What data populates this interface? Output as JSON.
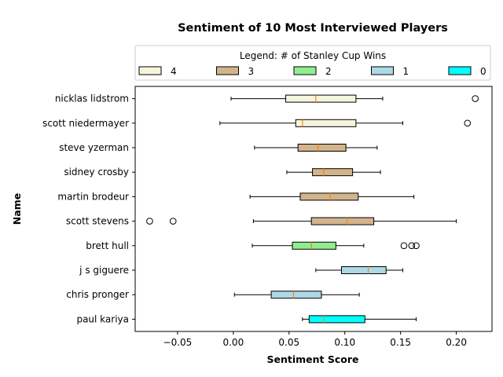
{
  "chart_data": {
    "type": "boxplot",
    "orientation": "horizontal",
    "title": "Sentiment of 10 Most Interviewed Players",
    "xlabel": "Sentiment Score",
    "ylabel": "Name",
    "xlim": [
      -0.088,
      0.232
    ],
    "xticks": [
      -0.05,
      0.0,
      0.05,
      0.1,
      0.15,
      0.2
    ],
    "xtick_labels": [
      "−0.05",
      "0.00",
      "0.05",
      "0.10",
      "0.15",
      "0.20"
    ],
    "grid": false,
    "legend": {
      "title": "Legend: # of Stanley Cup Wins",
      "position": "top",
      "entries": [
        {
          "label": "4",
          "color": "#f5f5dc"
        },
        {
          "label": "3",
          "color": "#d2b48c"
        },
        {
          "label": "2",
          "color": "#90ee90"
        },
        {
          "label": "1",
          "color": "#add8e6"
        },
        {
          "label": "0",
          "color": "#00ffff"
        }
      ]
    },
    "median_color": "#ff7f0e",
    "series": [
      {
        "name": "nicklas lidstrom",
        "cup_wins": 4,
        "whisker_low": -0.002,
        "q1": 0.047,
        "median": 0.074,
        "q3": 0.11,
        "whisker_high": 0.134,
        "outliers": [
          0.217
        ]
      },
      {
        "name": "scott niedermayer",
        "cup_wins": 4,
        "whisker_low": -0.012,
        "q1": 0.056,
        "median": 0.062,
        "q3": 0.11,
        "whisker_high": 0.152,
        "outliers": [
          0.21
        ]
      },
      {
        "name": "steve yzerman",
        "cup_wins": 3,
        "whisker_low": 0.019,
        "q1": 0.058,
        "median": 0.076,
        "q3": 0.101,
        "whisker_high": 0.129,
        "outliers": []
      },
      {
        "name": "sidney crosby",
        "cup_wins": 3,
        "whisker_low": 0.048,
        "q1": 0.071,
        "median": 0.081,
        "q3": 0.107,
        "whisker_high": 0.132,
        "outliers": []
      },
      {
        "name": "martin brodeur",
        "cup_wins": 3,
        "whisker_low": 0.015,
        "q1": 0.06,
        "median": 0.087,
        "q3": 0.112,
        "whisker_high": 0.162,
        "outliers": []
      },
      {
        "name": "scott stevens",
        "cup_wins": 3,
        "whisker_low": 0.018,
        "q1": 0.07,
        "median": 0.102,
        "q3": 0.126,
        "whisker_high": 0.2,
        "outliers": [
          -0.075,
          -0.054
        ]
      },
      {
        "name": "brett hull",
        "cup_wins": 2,
        "whisker_low": 0.017,
        "q1": 0.053,
        "median": 0.07,
        "q3": 0.092,
        "whisker_high": 0.117,
        "outliers": [
          0.153,
          0.16,
          0.164
        ]
      },
      {
        "name": "j s  giguere",
        "cup_wins": 1,
        "whisker_low": 0.074,
        "q1": 0.097,
        "median": 0.121,
        "q3": 0.137,
        "whisker_high": 0.152,
        "outliers": []
      },
      {
        "name": "chris pronger",
        "cup_wins": 1,
        "whisker_low": 0.001,
        "q1": 0.034,
        "median": 0.054,
        "q3": 0.079,
        "whisker_high": 0.113,
        "outliers": []
      },
      {
        "name": "paul kariya",
        "cup_wins": 0,
        "whisker_low": 0.062,
        "q1": 0.068,
        "median": 0.081,
        "q3": 0.118,
        "whisker_high": 0.164,
        "outliers": []
      }
    ]
  }
}
